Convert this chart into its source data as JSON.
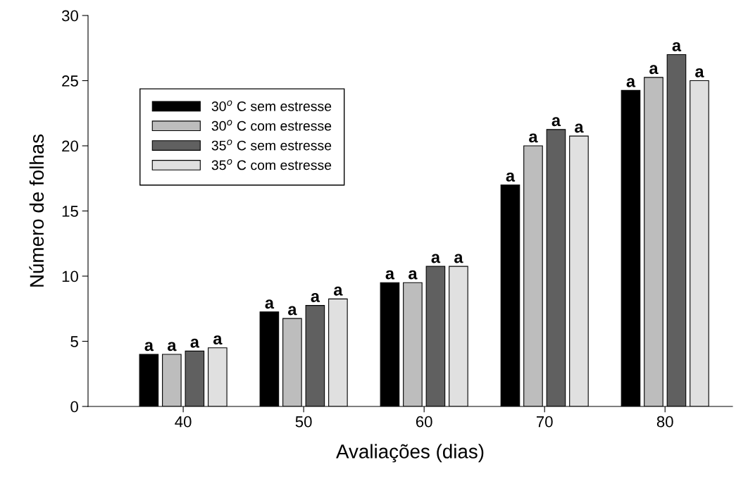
{
  "chart_data": {
    "type": "bar",
    "xlabel": "Avaliações (dias)",
    "ylabel": "Número de folhas",
    "categories": [
      "40",
      "50",
      "60",
      "70",
      "80"
    ],
    "ylim": [
      0,
      30
    ],
    "yticks": [
      0,
      5,
      10,
      15,
      20,
      25,
      30
    ],
    "legend": "top left",
    "grid": false,
    "series": [
      {
        "name": "30$^{o}$ C sem estresse",
        "color": "#000000",
        "values": [
          4.0,
          7.25,
          9.5,
          17.0,
          24.25
        ],
        "value_labels": [
          "a",
          "a",
          "a",
          "a",
          "a"
        ]
      },
      {
        "name": "30$^{o}$ C com estresse",
        "color": "#bdbdbd",
        "values": [
          4.0,
          6.75,
          9.5,
          20.0,
          25.25
        ],
        "value_labels": [
          "a",
          "a",
          "a",
          "a",
          "a"
        ]
      },
      {
        "name": "35$^{o}$ C sem estresse",
        "color": "#606060",
        "values": [
          4.25,
          7.75,
          10.75,
          21.25,
          27.0
        ],
        "value_labels": [
          "a",
          "a",
          "a",
          "a",
          "a"
        ]
      },
      {
        "name": "35$^{o}$ C com estresse",
        "color": "#e0e0e0",
        "values": [
          4.5,
          8.25,
          10.75,
          20.75,
          25.0
        ],
        "value_labels": [
          "a",
          "a",
          "a",
          "a",
          "a"
        ]
      }
    ]
  }
}
